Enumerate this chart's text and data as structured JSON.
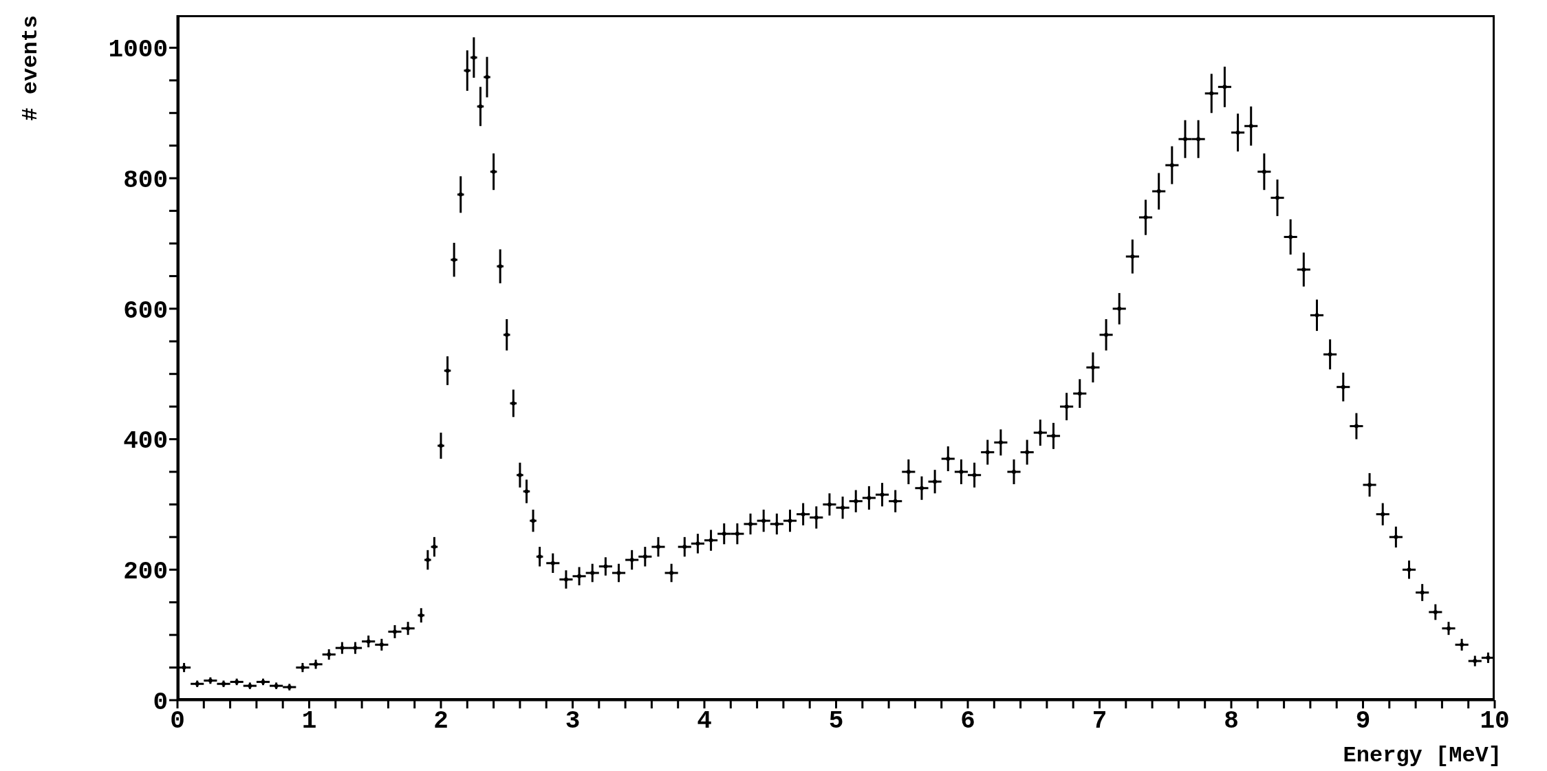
{
  "chart_data": {
    "type": "scatter",
    "xlabel": "Energy [MeV]",
    "ylabel": "# events",
    "marker": "circle",
    "grid": false,
    "legend": false,
    "xlim": [
      0,
      10
    ],
    "ylim": [
      0,
      1050
    ],
    "xticks": [
      0,
      {
        "value": 0.2,
        "label": null
      },
      {
        "value": 0.4,
        "label": null
      },
      {
        "value": 0.6,
        "label": null
      },
      {
        "value": 0.8,
        "label": null
      },
      1,
      {
        "value": 1.2,
        "label": null
      },
      {
        "value": 1.4,
        "label": null
      },
      {
        "value": 1.6,
        "label": null
      },
      {
        "value": 1.8,
        "label": null
      },
      2,
      {
        "value": 2.2,
        "label": null
      },
      {
        "value": 2.4,
        "label": null
      },
      {
        "value": 2.6,
        "label": null
      },
      {
        "value": 2.8,
        "label": null
      },
      3,
      {
        "value": 3.2,
        "label": null
      },
      {
        "value": 3.4,
        "label": null
      },
      {
        "value": 3.6,
        "label": null
      },
      {
        "value": 3.8,
        "label": null
      },
      4,
      {
        "value": 4.2,
        "label": null
      },
      {
        "value": 4.4,
        "label": null
      },
      {
        "value": 4.6,
        "label": null
      },
      {
        "value": 4.8,
        "label": null
      },
      5,
      {
        "value": 5.2,
        "label": null
      },
      {
        "value": 5.4,
        "label": null
      },
      {
        "value": 5.6,
        "label": null
      },
      {
        "value": 5.8,
        "label": null
      },
      6,
      {
        "value": 6.2,
        "label": null
      },
      {
        "value": 6.4,
        "label": null
      },
      {
        "value": 6.6,
        "label": null
      },
      {
        "value": 6.8,
        "label": null
      },
      7,
      {
        "value": 7.2,
        "label": null
      },
      {
        "value": 7.4,
        "label": null
      },
      {
        "value": 7.6,
        "label": null
      },
      {
        "value": 7.8,
        "label": null
      },
      8,
      {
        "value": 8.2,
        "label": null
      },
      {
        "value": 8.4,
        "label": null
      },
      {
        "value": 8.6,
        "label": null
      },
      {
        "value": 8.8,
        "label": null
      },
      9,
      {
        "value": 9.2,
        "label": null
      },
      {
        "value": 9.4,
        "label": null
      },
      {
        "value": 9.6,
        "label": null
      },
      {
        "value": 9.8,
        "label": null
      },
      10
    ],
    "yticks": [
      0,
      {
        "value": 50,
        "label": null
      },
      {
        "value": 100,
        "label": null
      },
      {
        "value": 150,
        "label": null
      },
      200,
      {
        "value": 250,
        "label": null
      },
      {
        "value": 300,
        "label": null
      },
      {
        "value": 350,
        "label": null
      },
      400,
      {
        "value": 450,
        "label": null
      },
      {
        "value": 500,
        "label": null
      },
      {
        "value": 550,
        "label": null
      },
      600,
      {
        "value": 650,
        "label": null
      },
      {
        "value": 700,
        "label": null
      },
      {
        "value": 750,
        "label": null
      },
      800,
      {
        "value": 850,
        "label": null
      },
      {
        "value": 900,
        "label": null
      },
      {
        "value": 950,
        "label": null
      },
      1000
    ],
    "series": [
      {
        "color": "#000000",
        "x": [
          0.05,
          0.15,
          0.25,
          0.35,
          0.45,
          0.55,
          0.65,
          0.75,
          0.85,
          0.95,
          1.05,
          1.15,
          1.25,
          1.35,
          1.45,
          1.55,
          1.65,
          1.75,
          1.85,
          1.9,
          1.95,
          2.0,
          2.05,
          2.1,
          2.15,
          2.2,
          2.25,
          2.3,
          2.35,
          2.4,
          2.45,
          2.5,
          2.55,
          2.6,
          2.65,
          2.7,
          2.75,
          2.85,
          2.95,
          3.05,
          3.15,
          3.25,
          3.35,
          3.45,
          3.55,
          3.65,
          3.75,
          3.85,
          3.95,
          4.05,
          4.15,
          4.25,
          4.35,
          4.45,
          4.55,
          4.65,
          4.75,
          4.85,
          4.95,
          5.05,
          5.15,
          5.25,
          5.35,
          5.45,
          5.55,
          5.65,
          5.75,
          5.85,
          5.95,
          6.05,
          6.15,
          6.25,
          6.35,
          6.45,
          6.55,
          6.65,
          6.75,
          6.85,
          6.95,
          7.05,
          7.15,
          7.25,
          7.35,
          7.45,
          7.55,
          7.65,
          7.75,
          7.85,
          7.95,
          8.05,
          8.15,
          8.25,
          8.35,
          8.45,
          8.55,
          8.65,
          8.75,
          8.85,
          8.95,
          9.05,
          9.15,
          9.25,
          9.35,
          9.45,
          9.55,
          9.65,
          9.75,
          9.85,
          9.95
        ],
        "values": [
          50,
          25,
          30,
          25,
          28,
          22,
          28,
          22,
          20,
          50,
          55,
          70,
          80,
          80,
          90,
          85,
          105,
          110,
          130,
          215,
          235,
          390,
          505,
          675,
          775,
          965,
          985,
          910,
          955,
          810,
          665,
          560,
          455,
          345,
          320,
          275,
          220,
          210,
          185,
          190,
          195,
          205,
          195,
          215,
          220,
          235,
          195,
          235,
          240,
          245,
          255,
          255,
          270,
          275,
          270,
          275,
          285,
          280,
          300,
          295,
          305,
          310,
          315,
          305,
          350,
          325,
          335,
          370,
          350,
          345,
          380,
          395,
          350,
          380,
          410,
          405,
          450,
          470,
          510,
          560,
          600,
          680,
          740,
          780,
          820,
          860,
          860,
          930,
          940,
          870,
          880,
          810,
          770,
          710,
          660,
          590,
          530,
          480,
          420,
          330,
          285,
          250,
          200,
          165,
          135,
          110,
          85,
          60,
          65
        ],
        "errors": [
          7,
          5,
          5,
          5,
          5,
          5,
          5,
          5,
          5,
          7,
          7,
          8,
          9,
          9,
          9,
          9,
          10,
          10,
          11,
          15,
          15,
          20,
          22,
          26,
          28,
          31,
          31,
          30,
          31,
          28,
          26,
          24,
          21,
          19,
          18,
          17,
          15,
          15,
          14,
          14,
          14,
          14,
          14,
          15,
          15,
          15,
          14,
          15,
          15,
          16,
          16,
          16,
          16,
          17,
          16,
          17,
          17,
          17,
          17,
          17,
          17,
          18,
          18,
          17,
          19,
          18,
          18,
          19,
          19,
          19,
          19,
          20,
          19,
          19,
          20,
          20,
          21,
          22,
          23,
          24,
          24,
          26,
          27,
          28,
          29,
          29,
          29,
          30,
          31,
          29,
          30,
          28,
          28,
          27,
          26,
          24,
          23,
          22,
          20,
          18,
          17,
          16,
          14,
          13,
          12,
          10,
          9,
          8,
          8
        ],
        "xerrors": [
          0.05,
          0.05,
          0.05,
          0.05,
          0.05,
          0.05,
          0.05,
          0.05,
          0.05,
          0.05,
          0.05,
          0.05,
          0.05,
          0.05,
          0.05,
          0.05,
          0.05,
          0.05,
          0.025,
          0.025,
          0.025,
          0.025,
          0.025,
          0.025,
          0.025,
          0.025,
          0.025,
          0.025,
          0.025,
          0.025,
          0.025,
          0.025,
          0.025,
          0.025,
          0.025,
          0.025,
          0.025,
          0.05,
          0.05,
          0.05,
          0.05,
          0.05,
          0.05,
          0.05,
          0.05,
          0.05,
          0.05,
          0.05,
          0.05,
          0.05,
          0.05,
          0.05,
          0.05,
          0.05,
          0.05,
          0.05,
          0.05,
          0.05,
          0.05,
          0.05,
          0.05,
          0.05,
          0.05,
          0.05,
          0.05,
          0.05,
          0.05,
          0.05,
          0.05,
          0.05,
          0.05,
          0.05,
          0.05,
          0.05,
          0.05,
          0.05,
          0.05,
          0.05,
          0.05,
          0.05,
          0.05,
          0.05,
          0.05,
          0.05,
          0.05,
          0.05,
          0.05,
          0.05,
          0.05,
          0.05,
          0.05,
          0.05,
          0.05,
          0.05,
          0.05,
          0.05,
          0.05,
          0.05,
          0.05,
          0.05,
          0.05,
          0.05,
          0.05,
          0.05,
          0.05,
          0.05,
          0.05,
          0.05,
          0.05
        ]
      }
    ]
  }
}
